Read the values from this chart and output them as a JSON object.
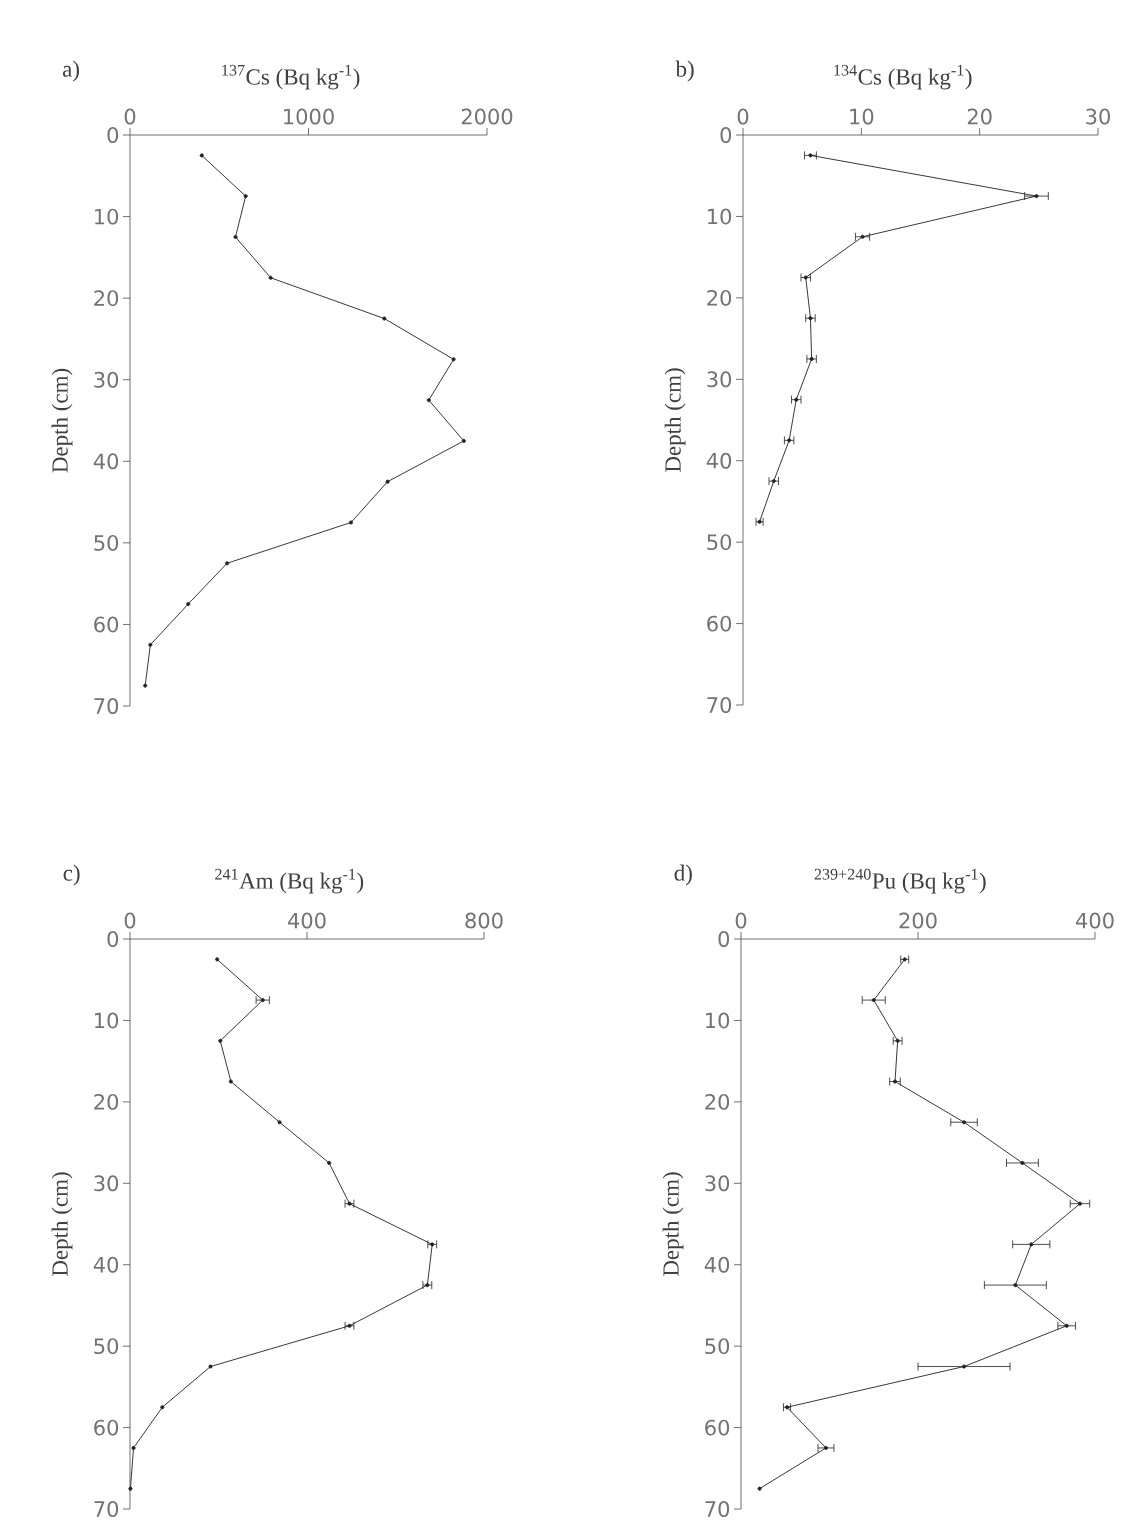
{
  "chart_data": [
    {
      "type": "line",
      "title": "a)",
      "xlabel": "$^{137}$Cs (Bq kg$^{-1}$)",
      "ylabel": "Depth (cm)",
      "xlim": [
        0,
        2000
      ],
      "xticks": [
        0,
        1000,
        2000
      ],
      "ylim": [
        70,
        0
      ],
      "yticks": [
        0,
        10,
        20,
        30,
        40,
        50,
        60,
        70
      ],
      "marker": "circle",
      "line_style": "solid",
      "series": [
        {
          "color": "#222222",
          "x": [
            402,
            648,
            591,
            788,
            1425,
            1813,
            1674,
            1870,
            1443,
            1238,
            544,
            326,
            114,
            85
          ],
          "values": [
            2.5,
            7.5,
            12.5,
            17.5,
            22.5,
            27.5,
            32.5,
            37.5,
            42.5,
            47.5,
            52.5,
            57.5,
            62.5,
            67.5
          ]
        }
      ]
    },
    {
      "type": "line",
      "title": "b)",
      "xlabel": "$^{134}$Cs (Bq kg$^{-1}$)",
      "ylabel": "Depth (cm)",
      "xlim": [
        0,
        30
      ],
      "xticks": [
        0,
        10,
        20,
        30
      ],
      "ylim": [
        70,
        0
      ],
      "yticks": [
        0,
        10,
        20,
        30,
        40,
        50,
        60,
        70
      ],
      "marker": "circle",
      "line_style": "solid",
      "series": [
        {
          "color": "#222222",
          "x": [
            5.7,
            24.8,
            10.1,
            5.3,
            5.7,
            5.8,
            4.5,
            3.9,
            2.6,
            1.4
          ],
          "values": [
            2.5,
            7.5,
            12.5,
            17.5,
            22.5,
            27.5,
            32.5,
            37.5,
            42.5,
            47.5
          ],
          "xerrors": [
            0.5,
            1.0,
            0.6,
            0.4,
            0.4,
            0.4,
            0.4,
            0.4,
            0.4,
            0.3
          ]
        }
      ]
    },
    {
      "type": "line",
      "title": "c)",
      "xlabel": "$^{241}$Am (Bq kg$^{-1}$)",
      "ylabel": "Depth (cm)",
      "xlim": [
        0,
        800
      ],
      "xticks": [
        0,
        400,
        800
      ],
      "ylim": [
        70,
        0
      ],
      "yticks": [
        0,
        10,
        20,
        30,
        40,
        50,
        60,
        70
      ],
      "marker": "circle",
      "line_style": "solid",
      "series": [
        {
          "color": "#222222",
          "x": [
            197,
            300,
            204,
            228,
            338,
            450,
            496,
            683,
            672,
            496,
            182,
            73,
            8,
            1
          ],
          "values": [
            2.5,
            7.5,
            12.5,
            17.5,
            22.5,
            27.5,
            32.5,
            37.5,
            42.5,
            47.5,
            52.5,
            57.5,
            62.5,
            67.5
          ],
          "xerrors": [
            null,
            15,
            null,
            null,
            null,
            null,
            10,
            10,
            10,
            10,
            null,
            null,
            null,
            null
          ]
        }
      ]
    },
    {
      "type": "line",
      "title": "d)",
      "xlabel": "$^{239+240}$Pu (Bq kg$^{-1}$)",
      "ylabel": "Depth (cm)",
      "xlim": [
        0,
        400
      ],
      "xticks": [
        0,
        200,
        400
      ],
      "ylim": [
        70,
        0
      ],
      "yticks": [
        0,
        10,
        20,
        30,
        40,
        50,
        60,
        70
      ],
      "marker": "circle",
      "line_style": "solid",
      "series": [
        {
          "color": "#222222",
          "x": [
            185,
            150,
            177,
            174,
            252,
            318,
            383,
            328,
            310,
            368,
            252,
            52,
            96,
            21
          ],
          "values": [
            2.5,
            7.5,
            12.5,
            17.5,
            22.5,
            27.5,
            32.5,
            37.5,
            42.5,
            47.5,
            52.5,
            57.5,
            62.5,
            67.5
          ],
          "xerrors": [
            4.5,
            13,
            5,
            6,
            15,
            18,
            11,
            21,
            35,
            10,
            52,
            4,
            9,
            null
          ]
        }
      ]
    }
  ]
}
